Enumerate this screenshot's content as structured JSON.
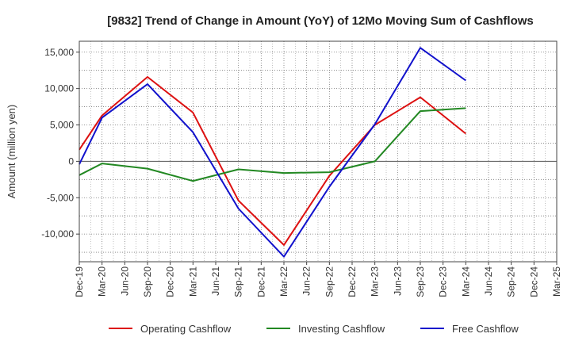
{
  "chart_data": {
    "type": "line",
    "title": "[9832]  Trend of Change in Amount (YoY) of 12Mo Moving Sum of Cashflows",
    "xlabel": "",
    "ylabel": "Amount (million yen)",
    "ylim": [
      -13800,
      16500
    ],
    "yticks": [
      15000,
      10000,
      5000,
      0,
      -5000,
      -10000
    ],
    "ytick_labels": [
      "15,000",
      "10,000",
      "5,000",
      "0",
      "-5,000",
      "-10,000"
    ],
    "grid": true,
    "legend_position": "bottom",
    "categories": [
      "Dec-19",
      "Mar-20",
      "Jun-20",
      "Sep-20",
      "Dec-20",
      "Mar-21",
      "Jun-21",
      "Sep-21",
      "Dec-21",
      "Mar-22",
      "Jun-22",
      "Sep-22",
      "Dec-22",
      "Mar-23",
      "Jun-23",
      "Sep-23",
      "Dec-23",
      "Mar-24",
      "Jun-24",
      "Sep-24",
      "Dec-24",
      "Mar-25"
    ],
    "series": [
      {
        "name": "Operating Cashflow",
        "color": "#dd1111",
        "values": [
          1600,
          6300,
          null,
          11600,
          null,
          6700,
          null,
          -5400,
          null,
          -11500,
          null,
          -2000,
          null,
          5000,
          null,
          8800,
          null,
          3800,
          null,
          null,
          null,
          null
        ]
      },
      {
        "name": "Investing Cashflow",
        "color": "#228822",
        "values": [
          -1900,
          -300,
          null,
          -1000,
          null,
          -2700,
          null,
          -1100,
          null,
          -1600,
          null,
          -1500,
          null,
          0,
          null,
          6900,
          null,
          7300,
          null,
          null,
          null,
          null
        ]
      },
      {
        "name": "Free Cashflow",
        "color": "#1111cc",
        "values": [
          -400,
          6000,
          null,
          10600,
          null,
          4000,
          null,
          -6500,
          null,
          -13100,
          null,
          -3500,
          null,
          5100,
          null,
          15600,
          null,
          11100,
          null,
          null,
          null,
          null
        ]
      }
    ]
  }
}
